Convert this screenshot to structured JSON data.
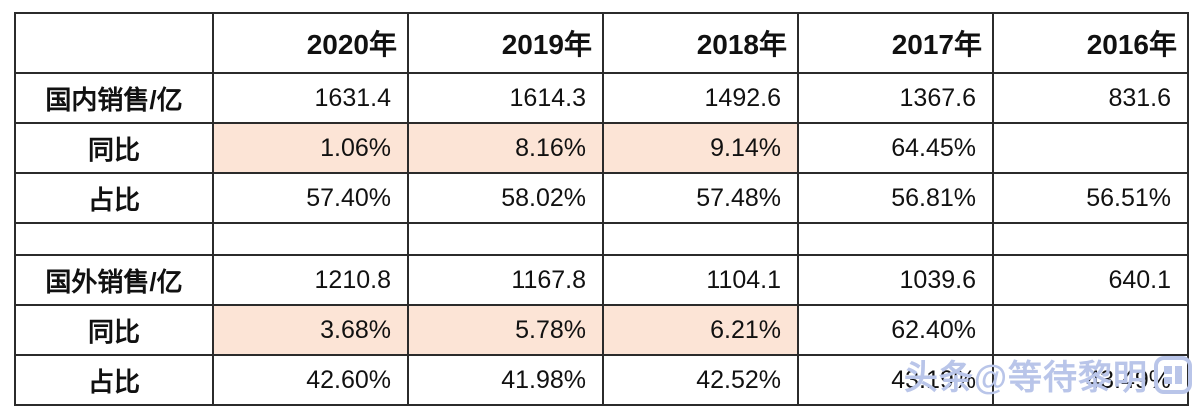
{
  "colors": {
    "highlight": "#fce4d6",
    "border": "#2b2b2b",
    "background": "#ffffff",
    "watermark": "#b9c5e9"
  },
  "watermark": {
    "text": "头条@等待黎明",
    "logo": "toutiao-logo"
  },
  "chart_data": {
    "type": "table",
    "title": "",
    "columns": [
      "",
      "2020年",
      "2019年",
      "2018年",
      "2017年",
      "2016年"
    ],
    "rows": [
      {
        "label": "国内销售/亿",
        "values": [
          "1631.4",
          "1614.3",
          "1492.6",
          "1367.6",
          "831.6"
        ],
        "highlighted_cells": [],
        "spacer": false
      },
      {
        "label": "同比",
        "values": [
          "1.06%",
          "8.16%",
          "9.14%",
          "64.45%",
          ""
        ],
        "highlighted_cells": [
          0,
          1,
          2
        ],
        "spacer": false
      },
      {
        "label": "占比",
        "values": [
          "57.40%",
          "58.02%",
          "57.48%",
          "56.81%",
          "56.51%"
        ],
        "highlighted_cells": [],
        "spacer": false
      },
      {
        "label": "",
        "values": [
          "",
          "",
          "",
          "",
          ""
        ],
        "highlighted_cells": [],
        "spacer": true
      },
      {
        "label": "国外销售/亿",
        "values": [
          "1210.8",
          "1167.8",
          "1104.1",
          "1039.6",
          "640.1"
        ],
        "highlighted_cells": [],
        "spacer": false
      },
      {
        "label": "同比",
        "values": [
          "3.68%",
          "5.78%",
          "6.21%",
          "62.40%",
          ""
        ],
        "highlighted_cells": [
          0,
          1,
          2
        ],
        "spacer": false
      },
      {
        "label": "占比",
        "values": [
          "42.60%",
          "41.98%",
          "42.52%",
          "43.19%",
          "43.49%"
        ],
        "highlighted_cells": [],
        "spacer": false
      }
    ],
    "legend": null,
    "grid": "all-cell-borders"
  }
}
